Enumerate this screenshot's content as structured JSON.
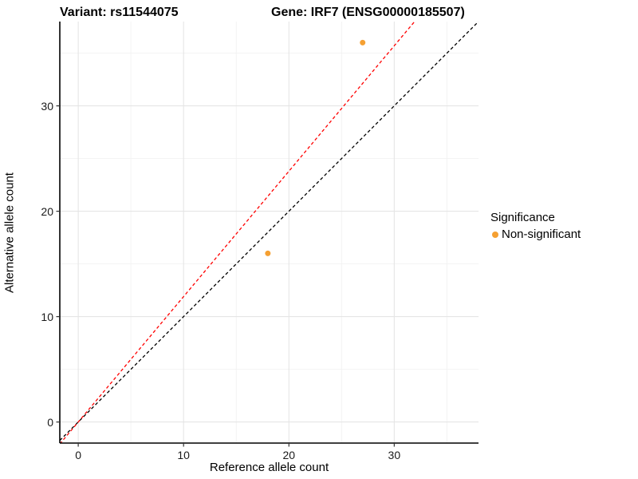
{
  "title": {
    "variant": "Variant: rs11544075",
    "gene": "Gene: IRF7 (ENSG00000185507)"
  },
  "chart_data": {
    "type": "scatter",
    "title": "Variant: rs11544075   Gene: IRF7 (ENSG00000185507)",
    "xlabel": "Reference allele count",
    "ylabel": "Alternative allele count",
    "xlim": [
      -1.75,
      38.0
    ],
    "ylim": [
      -2.0,
      38.0
    ],
    "xticks": [
      0,
      10,
      20,
      30
    ],
    "yticks": [
      0,
      10,
      20,
      30
    ],
    "minor_ticks": [
      5,
      15,
      25,
      35
    ],
    "grid": true,
    "points": [
      {
        "x": 18,
        "y": 16,
        "significance": "Non-significant"
      },
      {
        "x": 27,
        "y": 36,
        "significance": "Non-significant"
      }
    ],
    "point_color": "#F5A032",
    "point_radius": 3.5,
    "lines": [
      {
        "name": "identity-line",
        "slope": 1.0,
        "intercept": 0,
        "color": "#000000",
        "style": "dashed"
      },
      {
        "name": "expected-ratio-line",
        "slope": 1.19,
        "intercept": 0,
        "color": "#FF0000",
        "style": "dashed"
      }
    ],
    "legend": {
      "title": "Significance",
      "position": "right",
      "items": [
        {
          "label": "Non-significant",
          "color": "#F5A032"
        }
      ]
    },
    "colors": {
      "major_grid": "#e5e5e5",
      "minor_grid": "#f2f2f2",
      "axis_line": "#000000",
      "panel_background": "#ffffff"
    }
  }
}
